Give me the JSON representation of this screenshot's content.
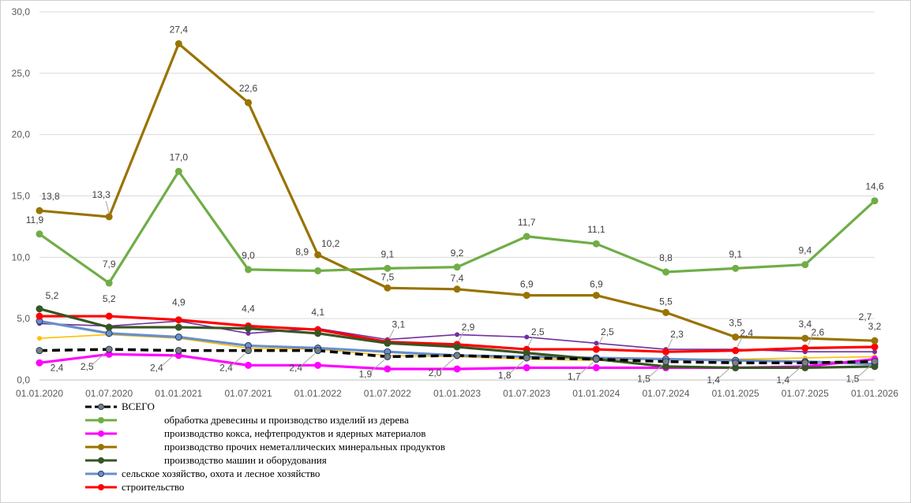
{
  "chart_data": {
    "type": "line",
    "title": "",
    "xlabel": "",
    "ylabel": "",
    "ylim": [
      0,
      30
    ],
    "yticks": [
      "0,0",
      "5,0",
      "10,0",
      "15,0",
      "20,0",
      "25,0",
      "30,0"
    ],
    "categories": [
      "01.01.2020",
      "01.07.2020",
      "01.01.2021",
      "01.07.2021",
      "01.01.2022",
      "01.07.2022",
      "01.01.2023",
      "01.07.2023",
      "01.01.2024",
      "01.07.2024",
      "01.01.2025",
      "01.07.2025",
      "01.01.2026"
    ],
    "grid": "horizontal",
    "legend_position": "bottom-left",
    "series": [
      {
        "key": "total",
        "name": "ВСЕГО",
        "color": "#000000",
        "dashed": true,
        "values": [
          2.4,
          2.5,
          2.4,
          2.4,
          2.4,
          1.9,
          2.0,
          1.8,
          1.7,
          1.5,
          1.4,
          1.4,
          1.5
        ],
        "labels": [
          "2,4",
          "2,5",
          "2,4",
          "2,4",
          "2,4",
          "1,9",
          "2,0",
          "1,8",
          "1,7",
          "1,5",
          "1,4",
          "1,4",
          "1,5"
        ]
      },
      {
        "key": "wood",
        "name": "обработка древесины и производство изделий из дерева",
        "color": "#70AD47",
        "values": [
          11.9,
          7.9,
          17.0,
          9.0,
          8.9,
          9.1,
          9.2,
          11.7,
          11.1,
          8.8,
          9.1,
          9.4,
          14.6
        ],
        "labels": [
          "11,9",
          "7,9",
          "17,0",
          "9,0",
          "8,9",
          "9,1",
          "9,2",
          "11,7",
          "11,1",
          "8,8",
          "9,1",
          "9,4",
          "14,6"
        ]
      },
      {
        "key": "coke",
        "name": "производство кокса, нефтепродуктов и ядерных материалов",
        "color": "#FF00FF",
        "values": [
          1.4,
          2.1,
          2.0,
          1.2,
          1.2,
          0.9,
          0.9,
          1.0,
          1.0,
          1.0,
          1.0,
          1.1,
          1.7
        ],
        "labels": []
      },
      {
        "key": "nonmetal",
        "name": "производство прочих неметаллических минеральных продуктов",
        "color": "#997300",
        "values": [
          13.8,
          13.3,
          27.4,
          22.6,
          10.2,
          7.5,
          7.4,
          6.9,
          6.9,
          5.5,
          3.5,
          3.4,
          3.2
        ],
        "labels": [
          "13,8",
          "13,3",
          "27,4",
          "22,6",
          "10,2",
          "7,5",
          "7,4",
          "6,9",
          "6,9",
          "5,5",
          "3,5",
          "3,4",
          "3,2"
        ]
      },
      {
        "key": "machines",
        "name": "производство машин и оборудования",
        "color": "#375623",
        "values": [
          5.8,
          4.3,
          4.3,
          4.2,
          3.8,
          3.0,
          2.7,
          2.2,
          1.7,
          1.1,
          1.0,
          1.0,
          1.1
        ],
        "labels": []
      },
      {
        "key": "agri",
        "name": "сельское хозяйство, охота и лесное хозяйство",
        "color": "#6A8FC8",
        "values": [
          4.8,
          3.8,
          3.5,
          2.8,
          2.6,
          2.3,
          2.0,
          1.9,
          1.8,
          1.7,
          1.6,
          1.5,
          1.3
        ],
        "labels": []
      },
      {
        "key": "construction",
        "name": "строительство",
        "color": "#FF0000",
        "values": [
          5.2,
          5.2,
          4.9,
          4.4,
          4.1,
          3.1,
          2.9,
          2.5,
          2.5,
          2.3,
          2.4,
          2.6,
          2.7
        ],
        "labels": [
          "5,2",
          "5,2",
          "4,9",
          "4,4",
          "4,1",
          "3,1",
          "2,9",
          "2,5",
          "2,5",
          "2,3",
          "2,4",
          "2,6",
          "2,7"
        ]
      },
      {
        "key": "purple",
        "name": "",
        "color": "#7030A0",
        "values": [
          4.6,
          4.4,
          4.8,
          3.8,
          4.2,
          3.3,
          3.7,
          3.5,
          3.0,
          2.5,
          2.5,
          2.3,
          2.3
        ],
        "labels": []
      },
      {
        "key": "yellow",
        "name": "",
        "color": "#FFC000",
        "values": [
          3.4,
          3.7,
          3.4,
          2.6,
          2.5,
          2.0,
          1.9,
          1.7,
          1.6,
          1.7,
          1.7,
          1.8,
          1.9
        ],
        "labels": []
      }
    ]
  }
}
